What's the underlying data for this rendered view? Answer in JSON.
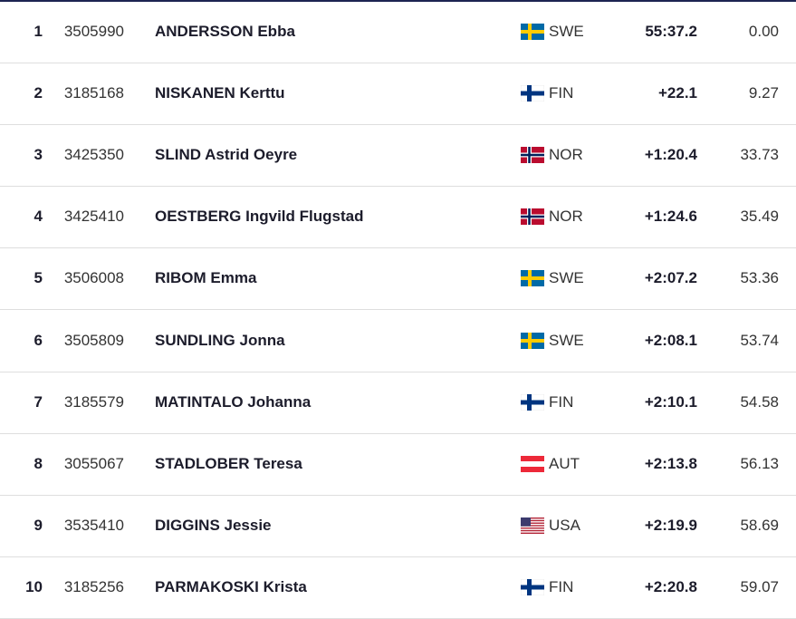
{
  "table": {
    "rows": [
      [
        "1",
        "3505990",
        "ANDERSSON Ebba",
        "SWE",
        "55:37.2",
        "0.00"
      ],
      [
        "2",
        "3185168",
        "NISKANEN Kerttu",
        "FIN",
        "+22.1",
        "9.27"
      ],
      [
        "3",
        "3425350",
        "SLIND Astrid Oeyre",
        "NOR",
        "+1:20.4",
        "33.73"
      ],
      [
        "4",
        "3425410",
        "OESTBERG Ingvild Flugstad",
        "NOR",
        "+1:24.6",
        "35.49"
      ],
      [
        "5",
        "3506008",
        "RIBOM Emma",
        "SWE",
        "+2:07.2",
        "53.36"
      ],
      [
        "6",
        "3505809",
        "SUNDLING Jonna",
        "SWE",
        "+2:08.1",
        "53.74"
      ],
      [
        "7",
        "3185579",
        "MATINTALO Johanna",
        "FIN",
        "+2:10.1",
        "54.58"
      ],
      [
        "8",
        "3055067",
        "STADLOBER Teresa",
        "AUT",
        "+2:13.8",
        "56.13"
      ],
      [
        "9",
        "3535410",
        "DIGGINS Jessie",
        "USA",
        "+2:19.9",
        "58.69"
      ],
      [
        "10",
        "3185256",
        "PARMAKOSKI Krista",
        "FIN",
        "+2:20.8",
        "59.07"
      ]
    ]
  }
}
